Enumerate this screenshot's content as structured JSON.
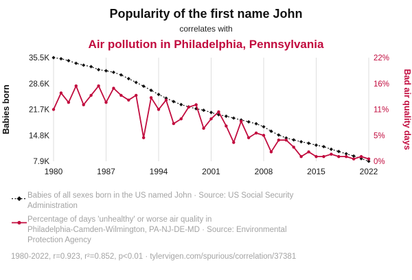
{
  "header": {
    "title": "Popularity of the first name John",
    "subtitle": "correlates with",
    "red_title": "Air pollution in Philadelphia, Pennsylvania"
  },
  "legend": {
    "john_label": "Babies of all sexes born in the US named John · Source: US Social Security\nAdministration",
    "pollution_label": "Percentage of days 'unhealthy' or worse air quality in\nPhiladelphia-Camden-Wilmington, PA-NJ-DE-MD · Source: Environmental\nProtection Agency"
  },
  "footer": {
    "stats": "1980-2022, r=0.923, r²=0.852, p<0.01 · tylervigen.com/spurious/correlation/37381"
  },
  "colors": {
    "accent_red": "#c10b3e",
    "line_black": "#141414",
    "grid": "#dedede",
    "tick_text": "#1a1a1a",
    "gray_text": "#a3a3a3"
  },
  "chart_data": {
    "type": "line",
    "x": [
      1980,
      1981,
      1982,
      1983,
      1984,
      1985,
      1986,
      1987,
      1988,
      1989,
      1990,
      1991,
      1992,
      1993,
      1994,
      1995,
      1996,
      1997,
      1998,
      1999,
      2000,
      2001,
      2002,
      2003,
      2004,
      2005,
      2006,
      2007,
      2008,
      2009,
      2010,
      2011,
      2012,
      2013,
      2014,
      2015,
      2016,
      2017,
      2018,
      2019,
      2020,
      2021,
      2022
    ],
    "x_ticks": [
      1980,
      1987,
      1994,
      2001,
      2008,
      2015,
      2022
    ],
    "grid": "vertical-only",
    "legend_position": "below",
    "left_axis": {
      "label": "Babies born",
      "ticks": [
        "7.9K",
        "14.8K",
        "21.7K",
        "28.6K",
        "35.5K"
      ],
      "tick_values": [
        7.9,
        14.8,
        21.7,
        28.6,
        35.5
      ],
      "range": [
        7.9,
        35.5
      ]
    },
    "right_axis": {
      "label": "Bad air quality days",
      "ticks": [
        "0%",
        "5%",
        "11%",
        "16%",
        "22%"
      ],
      "tick_values": [
        0,
        5.5,
        11,
        16.5,
        22
      ],
      "range": [
        0,
        22
      ]
    },
    "series": [
      {
        "name": "Babies of all sexes born in the US named John (thousands)",
        "name_slug": "john-series",
        "axis": "left",
        "color": "#141414",
        "style": "dotted-diamond",
        "values": [
          35.5,
          35.2,
          34.7,
          34.0,
          33.5,
          33.1,
          32.3,
          32.0,
          31.6,
          30.9,
          29.9,
          28.9,
          27.9,
          26.8,
          25.7,
          24.7,
          23.8,
          23.0,
          22.4,
          21.9,
          21.5,
          20.9,
          20.3,
          19.9,
          19.4,
          18.9,
          18.4,
          17.9,
          17.1,
          15.9,
          14.9,
          14.1,
          13.6,
          13.1,
          12.7,
          12.2,
          11.8,
          11.1,
          10.5,
          9.9,
          9.3,
          8.6,
          7.9
        ]
      },
      {
        "name": "Percentage of days 'unhealthy' or worse air quality in Philadelphia-Camden-Wilmington",
        "name_slug": "pollution-series",
        "axis": "right",
        "color": "#c10b3e",
        "style": "solid-dot",
        "values": [
          11.0,
          14.5,
          12.5,
          16.0,
          12.0,
          14.0,
          16.0,
          12.5,
          15.5,
          14.0,
          13.0,
          14.0,
          5.0,
          13.5,
          11.0,
          13.0,
          8.0,
          9.0,
          11.5,
          12.0,
          7.0,
          9.0,
          10.5,
          7.5,
          4.0,
          8.5,
          5.0,
          6.0,
          5.5,
          2.0,
          4.5,
          4.5,
          3.0,
          1.0,
          2.0,
          1.0,
          1.0,
          1.5,
          1.0,
          1.0,
          0.5,
          1.0,
          0.5
        ]
      }
    ]
  }
}
